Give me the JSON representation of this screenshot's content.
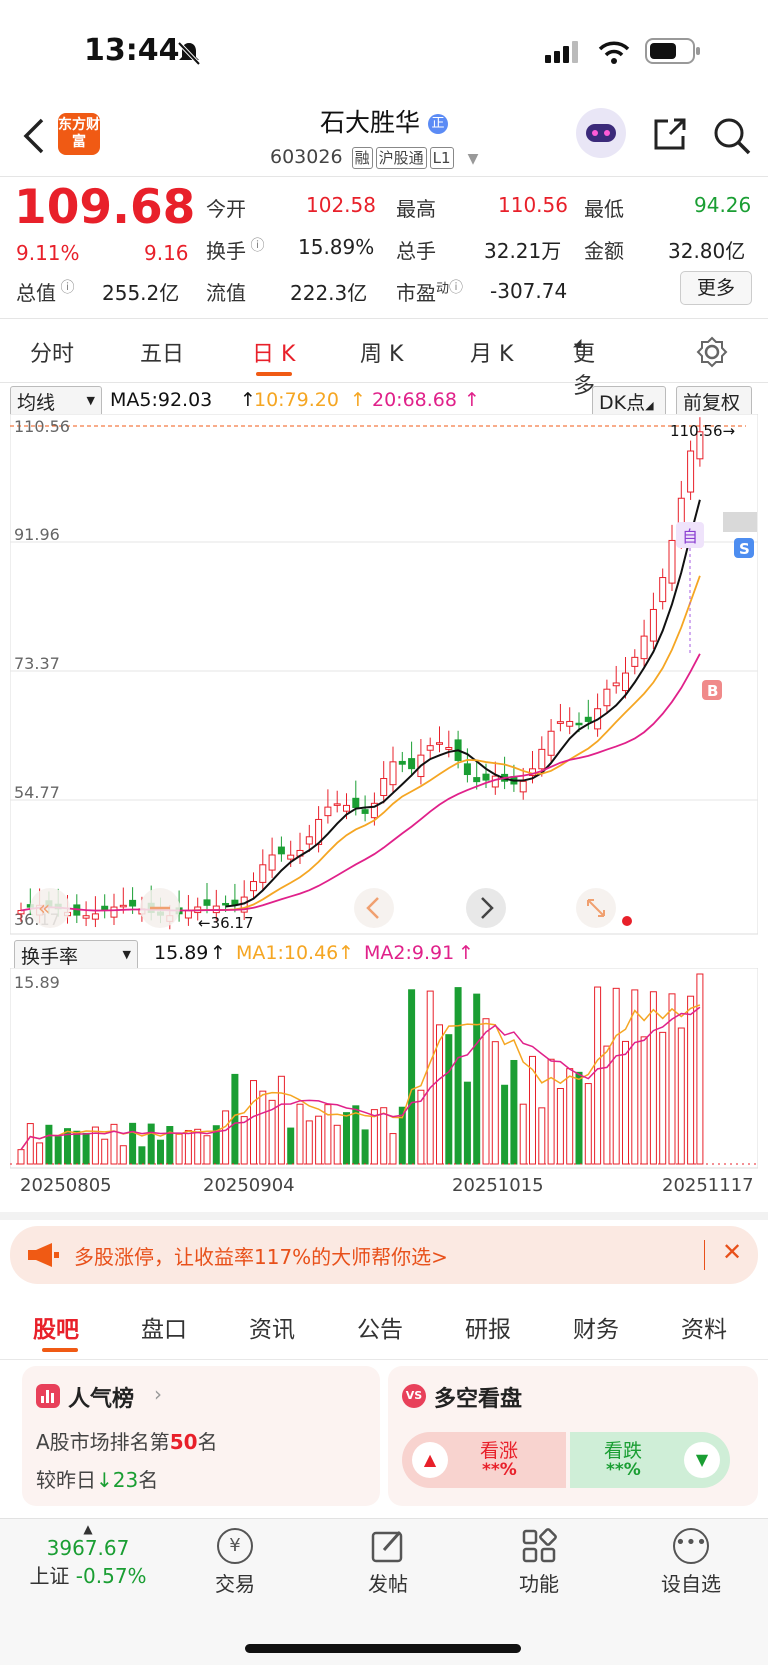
{
  "status": {
    "time": "13:44"
  },
  "header": {
    "logo": "东方财富",
    "stock_name": "石大胜华",
    "stock_code": "603026",
    "tags": [
      "融",
      "沪股通",
      "L1"
    ]
  },
  "quote": {
    "price": "109.68",
    "change_pct": "9.11%",
    "change_amt": "9.16",
    "open_label": "今开",
    "open": "102.58",
    "high_label": "最高",
    "high": "110.56",
    "low_label": "最低",
    "low": "94.26",
    "turnover_label": "换手",
    "turnover": "15.89%",
    "volume_label": "总手",
    "volume": "32.21万",
    "amount_label": "金额",
    "amount": "32.80亿",
    "mktcap_label": "总值",
    "mktcap": "255.2亿",
    "float_label": "流值",
    "float": "222.3亿",
    "pe_label": "市盈",
    "pe_sup": "动",
    "pe": "-307.74",
    "more_btn": "更多"
  },
  "tabs": [
    "分时",
    "五日",
    "日 K",
    "周 K",
    "月 K",
    "更多"
  ],
  "active_tab": "日 K",
  "kline": {
    "ma_selector": "均线",
    "ma5": "MA5:92.03",
    "ma10": "10:79.20",
    "ma20": "20:68.68",
    "dk_btn": "DK点",
    "adjust_btn": "前复权",
    "y_ticks": [
      "110.56",
      "91.96",
      "73.37",
      "54.77",
      "36.17"
    ],
    "high_marker": "110.56",
    "low_marker": "36.17",
    "marker_zi": "自",
    "marker_b": "B",
    "marker_s": "S",
    "colors": {
      "up": "#e8202a",
      "down": "#1a9e33",
      "ma5": "#111111",
      "ma10": "#f5a623",
      "ma20": "#e0218a"
    }
  },
  "volume": {
    "selector": "换手率",
    "value": "15.89",
    "ma1": "MA1:10.46",
    "ma2": "MA2:9.91",
    "y_max": "15.89",
    "dates": [
      "20250805",
      "20250904",
      "20251015",
      "20251117"
    ]
  },
  "banner": {
    "text": "多股涨停，让收益率117%的大师帮你选>"
  },
  "sub_tabs": [
    "股吧",
    "盘口",
    "资讯",
    "公告",
    "研报",
    "财务",
    "资料"
  ],
  "active_sub_tab": "股吧",
  "popularity": {
    "title": "人气榜",
    "rank_prefix": "A股市场排名第",
    "rank": "50",
    "rank_suffix": "名",
    "change_prefix": "较昨日",
    "change": "23",
    "change_suffix": "名"
  },
  "sentiment": {
    "title": "多空看盘",
    "bull_label": "看涨",
    "bull_value": "**%",
    "bear_label": "看跌",
    "bear_value": "**%"
  },
  "bottom_nav": {
    "index_value": "3967.67",
    "index_name": "上证",
    "index_change": "-0.57%",
    "trade": "交易",
    "post": "发帖",
    "functions": "功能",
    "watchlist": "设自选"
  }
}
